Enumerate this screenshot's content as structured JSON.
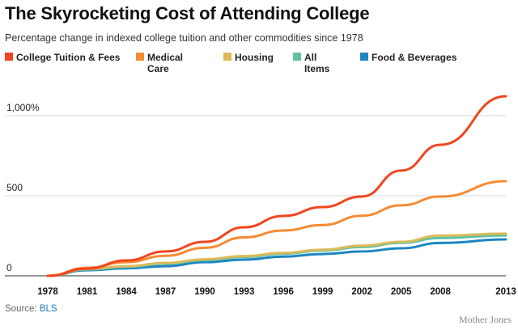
{
  "chart_data": {
    "type": "line",
    "title": "The Skyrocketing Cost of Attending College",
    "subtitle": "Percentage change in indexed college tuition and other commodities since 1978",
    "xlabel": "",
    "ylabel": "",
    "x": [
      1978,
      1981,
      1984,
      1987,
      1990,
      1993,
      1996,
      1999,
      2002,
      2005,
      2008,
      2013
    ],
    "x_tick_labels": [
      "1978",
      "1981",
      "1984",
      "1987",
      "1990",
      "1993",
      "1996",
      "1999",
      "2002",
      "2005",
      "2008",
      "2013"
    ],
    "xlim": [
      1978,
      2013
    ],
    "ylim": [
      0,
      1100
    ],
    "y_ticks": [
      0,
      500,
      1000
    ],
    "y_tick_labels": [
      "0",
      "500",
      "1,000%"
    ],
    "grid": true,
    "legend_position": "top",
    "series": [
      {
        "name": "College Tuition & Fees",
        "color": "#f0461e",
        "values": [
          0,
          45,
          96,
          152,
          212,
          303,
          374,
          429,
          495,
          657,
          818,
          1121
        ]
      },
      {
        "name": "Medical Care",
        "color": "#f68b35",
        "values": [
          0,
          50,
          85,
          125,
          175,
          240,
          283,
          317,
          375,
          440,
          495,
          591
        ]
      },
      {
        "name": "Housing",
        "color": "#dcba5a",
        "values": [
          0,
          42,
          60,
          80,
          103,
          123,
          143,
          163,
          188,
          212,
          251,
          263
        ]
      },
      {
        "name": "All Items",
        "color": "#5fc2a4",
        "values": [
          0,
          40,
          56,
          76,
          98,
          118,
          138,
          158,
          180,
          206,
          236,
          252
        ]
      },
      {
        "name": "Food & Beverages",
        "color": "#1e86c2",
        "values": [
          0,
          35,
          47,
          60,
          85,
          101,
          120,
          136,
          152,
          172,
          205,
          227
        ]
      }
    ]
  },
  "legend": [
    {
      "label": "College Tuition & Fees",
      "color": "#f0461e"
    },
    {
      "label": "Medical Care",
      "color": "#f68b35"
    },
    {
      "label": "Housing",
      "color": "#dcba5a"
    },
    {
      "label": "All Items",
      "color": "#5fc2a4"
    },
    {
      "label": "Food & Beverages",
      "color": "#1e86c2"
    }
  ],
  "footer": {
    "source_prefix": "Source: ",
    "source_link": "BLS",
    "credit": "Mother Jones"
  }
}
